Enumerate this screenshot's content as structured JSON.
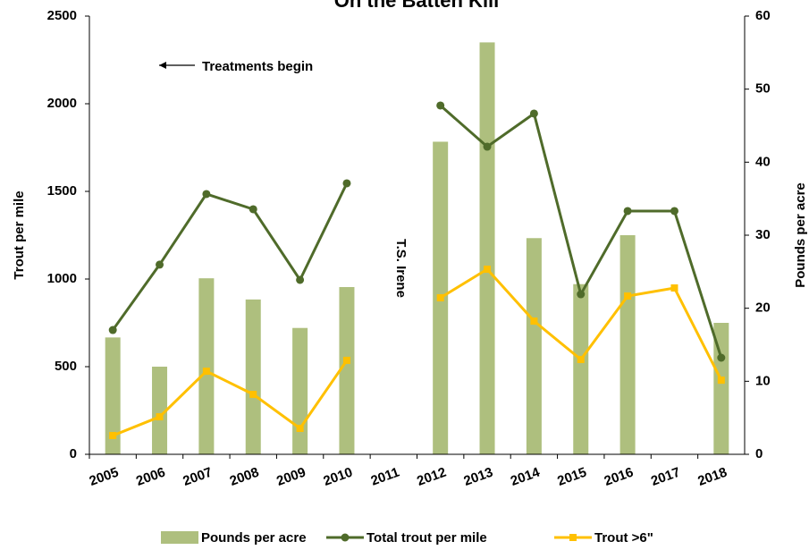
{
  "chart_data": {
    "type": "bar-line",
    "title": "On the Batten Kill",
    "categories": [
      "2005",
      "2006",
      "2007",
      "2008",
      "2009",
      "2010",
      "2011",
      "2012",
      "2013",
      "2014",
      "2015",
      "2016",
      "2017",
      "2018"
    ],
    "ylabel": "Trout per mile",
    "y2label": "Pounds per acre",
    "ylim": [
      0,
      2500
    ],
    "yticks": [
      0,
      500,
      1000,
      1500,
      2000,
      2500
    ],
    "y2lim": [
      0,
      60
    ],
    "y2ticks": [
      0,
      10,
      20,
      30,
      40,
      50,
      60
    ],
    "annotations": [
      "Treatments begin",
      "T.S. Irene"
    ],
    "series": [
      {
        "name": "Pounds per acre",
        "kind": "bar",
        "axis": "y2",
        "color": "#aebf7e",
        "values": [
          16.0,
          12.0,
          24.1,
          21.2,
          17.3,
          22.9,
          null,
          42.8,
          56.4,
          29.6,
          23.3,
          30.0,
          null,
          18.0
        ]
      },
      {
        "name": "Total trout per mile",
        "kind": "line",
        "color": "#4f6b2a",
        "values": [
          709,
          1082,
          1485,
          1398,
          995,
          1546,
          null,
          1990,
          1755,
          1944,
          913,
          1388,
          1388,
          551
        ]
      },
      {
        "name": "Trout >6\"",
        "kind": "line",
        "color": "#ffc000",
        "values": [
          107,
          214,
          474,
          342,
          148,
          536,
          null,
          893,
          1056,
          760,
          541,
          903,
          949,
          423
        ]
      }
    ]
  }
}
